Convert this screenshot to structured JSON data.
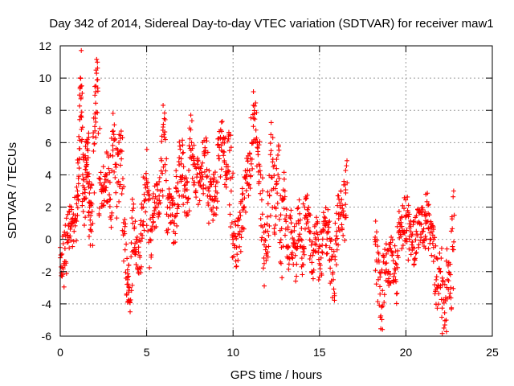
{
  "chart_data": {
    "type": "scatter",
    "title": "Day 342 of 2014, Sidereal Day-to-day VTEC variation (SDTVAR) for receiver maw1",
    "xlabel": "GPS time / hours",
    "ylabel": "SDTVAR / TECUs",
    "xlim": [
      0,
      25
    ],
    "ylim": [
      -6,
      12
    ],
    "xticks": [
      0,
      5,
      10,
      15,
      20,
      25
    ],
    "yticks": [
      -6,
      -4,
      -2,
      0,
      2,
      4,
      6,
      8,
      10,
      12
    ],
    "xtick_labels": [
      "0",
      "5",
      "10",
      "15",
      "20",
      "25"
    ],
    "ytick_labels": [
      "-6",
      "-4",
      "-2",
      "0",
      "2",
      "4",
      "6",
      "8",
      "10",
      "12"
    ],
    "grid": true,
    "marker": "+",
    "color": "#ff0000",
    "series": [
      {
        "name": "SDTVAR",
        "description": "dense scatter of samples, approx envelope",
        "x": [
          0.0,
          0.2,
          0.4,
          0.6,
          0.8,
          1.0,
          1.1,
          1.2,
          1.3,
          1.4,
          1.5,
          1.6,
          1.7,
          1.8,
          2.0,
          2.1,
          2.3,
          2.5,
          2.7,
          2.9,
          3.1,
          3.3,
          3.5,
          3.7,
          3.9,
          4.0,
          4.2,
          4.4,
          4.6,
          4.8,
          5.0,
          5.2,
          5.4,
          5.6,
          5.8,
          6.0,
          6.2,
          6.4,
          6.6,
          6.8,
          7.0,
          7.2,
          7.4,
          7.6,
          7.8,
          8.0,
          8.2,
          8.4,
          8.6,
          8.8,
          9.0,
          9.2,
          9.4,
          9.6,
          9.8,
          10.0,
          10.2,
          10.4,
          10.6,
          10.8,
          11.0,
          11.2,
          11.4,
          11.6,
          11.8,
          12.0,
          12.2,
          12.4,
          12.6,
          12.8,
          13.0,
          13.2,
          13.4,
          13.6,
          13.8,
          14.0,
          14.2,
          14.4,
          14.6,
          14.8,
          15.0,
          15.2,
          15.4,
          15.6,
          15.8,
          16.0,
          16.2,
          16.4,
          16.6,
          18.2,
          18.4,
          18.6,
          18.8,
          19.0,
          19.2,
          19.4,
          19.6,
          19.8,
          20.0,
          20.2,
          20.4,
          20.6,
          20.8,
          21.0,
          21.2,
          21.4,
          21.6,
          21.8,
          22.0,
          22.2,
          22.4,
          22.6,
          22.8
        ],
        "y": [
          -0.5,
          -1.5,
          -0.2,
          1.0,
          0.5,
          3.0,
          5.0,
          9.5,
          4.0,
          2.5,
          4.5,
          5.5,
          2.0,
          0.5,
          7.0,
          10.3,
          3.5,
          3.0,
          4.0,
          2.5,
          6.5,
          3.5,
          5.5,
          0.5,
          -2.5,
          -3.0,
          1.0,
          0.0,
          -1.0,
          2.0,
          3.5,
          0.0,
          1.5,
          2.5,
          3.0,
          6.5,
          2.0,
          1.5,
          1.0,
          3.5,
          5.0,
          3.0,
          2.5,
          6.0,
          4.5,
          3.5,
          4.0,
          5.5,
          3.0,
          2.5,
          3.0,
          5.0,
          6.0,
          4.5,
          5.5,
          0.0,
          -0.5,
          0.5,
          2.0,
          3.5,
          5.0,
          7.5,
          6.0,
          4.0,
          -1.5,
          0.5,
          5.5,
          2.0,
          4.0,
          -0.5,
          3.0,
          -0.5,
          0.5,
          -1.0,
          1.0,
          -0.5,
          1.5,
          0.5,
          -1.0,
          0.0,
          -1.5,
          0.5,
          1.0,
          -0.5,
          -2.5,
          0.5,
          2.0,
          1.5,
          3.5,
          0.0,
          -2.5,
          -4.2,
          -1.5,
          -2.0,
          -1.0,
          -2.5,
          0.5,
          0.5,
          1.5,
          0.0,
          -0.5,
          0.5,
          1.0,
          0.5,
          1.5,
          0.0,
          -0.5,
          -3.0,
          -2.0,
          -5.5,
          -2.5,
          -3.0,
          1.5
        ]
      }
    ]
  }
}
